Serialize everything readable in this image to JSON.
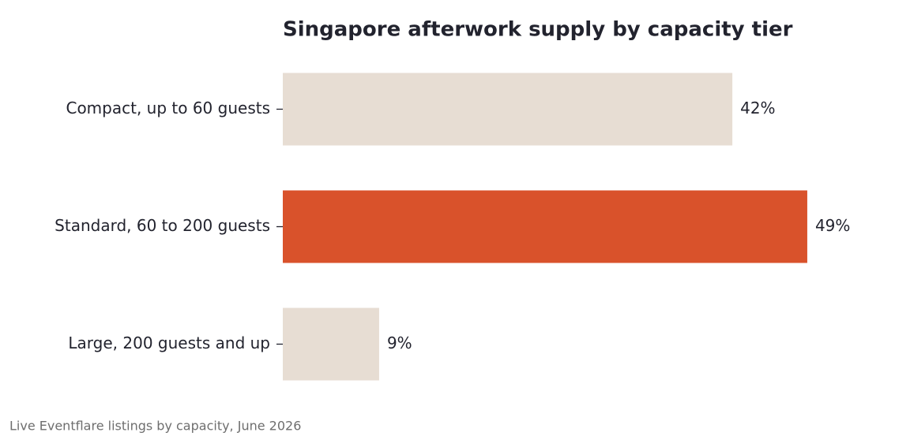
{
  "chart_data": {
    "type": "bar",
    "orientation": "horizontal",
    "title": "Singapore afterwork supply by capacity tier",
    "categories": [
      "Compact, up to 60 guests",
      "Standard, 60 to 200 guests",
      "Large, 200 guests and up"
    ],
    "values": [
      42,
      49,
      9
    ],
    "value_labels": [
      "42%",
      "49%",
      "9%"
    ],
    "colors": [
      "#e7ddd3",
      "#d9522b",
      "#e7ddd3"
    ],
    "note": "Live Eventflare listings by capacity, June 2026"
  }
}
